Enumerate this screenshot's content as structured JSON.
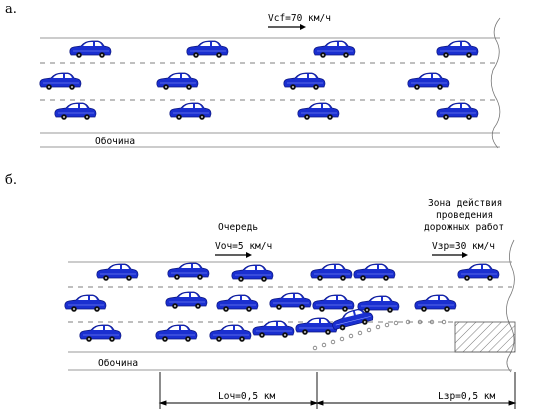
{
  "panel_a": {
    "label": "а.",
    "speed_label": "Vcf=70 км/ч",
    "shoulder_label": "Обочина"
  },
  "panel_b": {
    "label": "б.",
    "queue_label": "Очередь",
    "queue_speed_label": "Vоч=5 км/ч",
    "zone_label_line1": "Зона действия",
    "zone_label_line2": "проведения",
    "zone_label_line3": "дорожных работ",
    "zone_speed_label": "Vзр=30 км/ч",
    "shoulder_label": "Обочина",
    "dim_queue_length": "Lоч=0,5 км",
    "dim_zone_length": "Lзр=0,5 км"
  },
  "colors": {
    "car_body": "#1a2fd0",
    "car_outline": "#0a1580",
    "road_line": "#9a9a9a",
    "lane_dash": "#555555"
  }
}
